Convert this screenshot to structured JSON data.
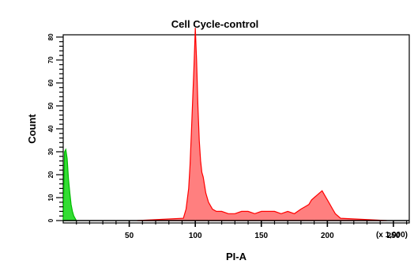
{
  "chart_data": {
    "type": "area",
    "title": "Cell Cycle-control",
    "xlabel": "PI-A",
    "xlabel_unit": "(x 1,000)",
    "ylabel": "Count",
    "xlim": [
      0,
      262
    ],
    "ylim": [
      0,
      81
    ],
    "grid": false,
    "legend": "none",
    "x_tick_labels": [
      "50",
      "100",
      "150",
      "200",
      "250"
    ],
    "x_tick_values": [
      50,
      100,
      150,
      200,
      250
    ],
    "y_tick_labels": [
      "0",
      "10",
      "20",
      "30",
      "40",
      "50",
      "60",
      "70",
      "80"
    ],
    "y_tick_values": [
      0,
      10,
      20,
      30,
      40,
      50,
      60,
      70,
      80
    ],
    "colors": {
      "debris_fill": "#33dd33",
      "cells_fill": "#ff7f7f",
      "cells_line": "#ff0000",
      "debris_line": "#00bb00"
    },
    "series": [
      {
        "color": "green",
        "x": [
          0,
          1,
          2,
          3,
          4,
          5,
          6,
          7,
          8,
          9,
          10
        ],
        "y": [
          0,
          30,
          31,
          27,
          18,
          12,
          7,
          4,
          2,
          1,
          0
        ]
      },
      {
        "color": "red",
        "x": [
          56,
          91,
          93,
          95,
          96,
          97,
          98,
          99,
          100,
          101,
          102,
          103,
          104,
          105,
          106,
          108,
          110,
          113,
          116,
          120,
          125,
          130,
          135,
          140,
          145,
          150,
          155,
          160,
          165,
          170,
          175,
          180,
          183,
          186,
          188,
          190,
          192,
          194,
          196,
          198,
          200,
          202,
          204,
          206,
          210,
          245
        ],
        "y": [
          0,
          1,
          5,
          14,
          24,
          38,
          52,
          67,
          84,
          70,
          50,
          35,
          26,
          21,
          19,
          12,
          8,
          5,
          4,
          4,
          3,
          3,
          4,
          4,
          3,
          4,
          4,
          4,
          3,
          4,
          3,
          5,
          6,
          7,
          9,
          10,
          11,
          12,
          13,
          11,
          9,
          7,
          5,
          3,
          1,
          0
        ]
      }
    ]
  }
}
